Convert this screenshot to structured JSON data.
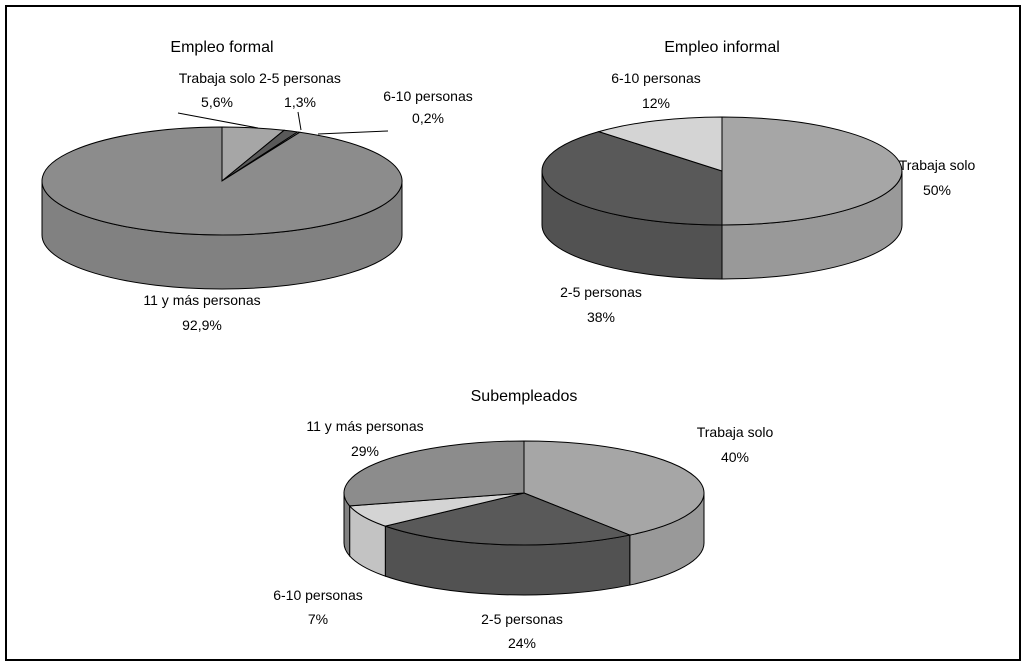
{
  "chart_data": [
    {
      "type": "pie",
      "title": "Empleo formal",
      "slices": [
        {
          "label": "Trabaja solo",
          "value": 5.6,
          "value_label": "5,6%",
          "color": "#A6A6A6"
        },
        {
          "label": "2-5 personas",
          "value": 1.3,
          "value_label": "1,3%",
          "color": "#595959"
        },
        {
          "label": "6-10 personas",
          "value": 0.2,
          "value_label": "0,2%",
          "color": "#D4D4D4"
        },
        {
          "label": "11 y más personas",
          "value": 92.9,
          "value_label": "92,9%",
          "color": "#8C8C8C"
        }
      ]
    },
    {
      "type": "pie",
      "title": "Empleo informal",
      "slices": [
        {
          "label": "Trabaja solo",
          "value": 50,
          "value_label": "50%",
          "color": "#A6A6A6"
        },
        {
          "label": "2-5 personas",
          "value": 38,
          "value_label": "38%",
          "color": "#595959"
        },
        {
          "label": "6-10 personas",
          "value": 12,
          "value_label": "12%",
          "color": "#D4D4D4"
        }
      ]
    },
    {
      "type": "pie",
      "title": "Subempleados",
      "slices": [
        {
          "label": "Trabaja solo",
          "value": 40,
          "value_label": "40%",
          "color": "#A6A6A6"
        },
        {
          "label": "2-5 personas",
          "value": 24,
          "value_label": "24%",
          "color": "#595959"
        },
        {
          "label": "6-10 personas",
          "value": 7,
          "value_label": "7%",
          "color": "#D4D4D4"
        },
        {
          "label": "11 y más personas",
          "value": 29,
          "value_label": "29%",
          "color": "#8C8C8C"
        }
      ]
    }
  ]
}
